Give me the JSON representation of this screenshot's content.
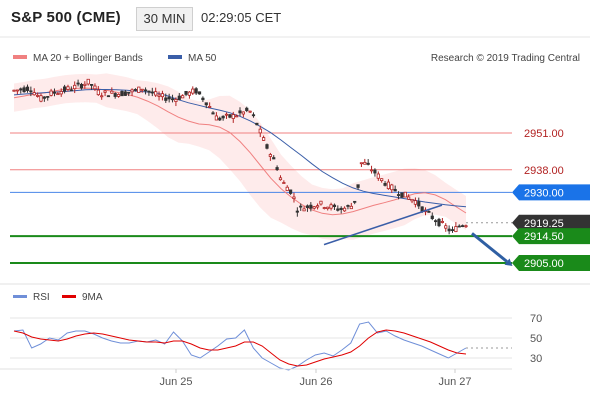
{
  "header": {
    "title": "S&P 500 (CME)",
    "timeframe": "30 MIN",
    "clock": "02:29:05 CET"
  },
  "legend": {
    "ma20_label": "MA 20 + Bollinger Bands",
    "ma50_label": "MA 50",
    "source": "Research © 2019 Trading Central"
  },
  "colors": {
    "ma20": "#f08080",
    "band_fill": "#fde2e2",
    "ma50": "#3a5ea8",
    "resistance": "#f08080",
    "pivot": "#4a86e8",
    "support": "#1a8a1a",
    "candle_up": "#b22222",
    "candle_down": "#333333",
    "current": "#333333",
    "rsi": "#6f8fd8",
    "rsi_ma": "#e00000",
    "arrow": "#2f5fa3"
  },
  "chart_data": [
    {
      "type": "candlestick",
      "yaxis": {
        "min": 2899,
        "max": 2974
      },
      "x_ticks": [
        "Jun 25",
        "Jun 26",
        "Jun 27"
      ],
      "levels": [
        {
          "name": "resistance-2",
          "value": "2951.00"
        },
        {
          "name": "resistance-1",
          "value": "2938.00"
        },
        {
          "name": "pivot",
          "value": "2930.00"
        },
        {
          "name": "current",
          "value": "2919.25"
        },
        {
          "name": "support-1",
          "value": "2914.50"
        },
        {
          "name": "support-2",
          "value": "2905.00"
        }
      ],
      "series": [
        {
          "name": "MA 20",
          "values": [
            2963.5,
            2964.1,
            2964.8,
            2965.2,
            2965.9,
            2966.5,
            2966.8,
            2966.9,
            2966.7,
            2966.1,
            2965.4,
            2964.7,
            2963.7,
            2962.3,
            2960.6,
            2958.5,
            2956.6,
            2955.2,
            2954.2,
            2953.9,
            2953.1,
            2951.2,
            2948.0,
            2944.0,
            2939.5,
            2935.0,
            2931.3,
            2928.3,
            2925.7,
            2923.8,
            2922.6,
            2922.1,
            2922.4,
            2923.2,
            2924.3,
            2925.4,
            2926.3,
            2927.3,
            2928.4,
            2929.5,
            2929.9,
            2929.1,
            2927.4,
            2925.0,
            2922.7
          ]
        },
        {
          "name": "MA 50",
          "values": [
            2964.5,
            2964.8,
            2965.0,
            2965.3,
            2965.5,
            2965.7,
            2966.0,
            2966.3,
            2966.4,
            2966.4,
            2966.3,
            2966.1,
            2965.8,
            2965.5,
            2965.1,
            2964.1,
            2962.8,
            2961.7,
            2960.8,
            2959.9,
            2959.1,
            2958.2,
            2956.9,
            2955.3,
            2953.3,
            2951.1,
            2948.5,
            2945.7,
            2943.0,
            2940.1,
            2937.4,
            2935.2,
            2933.2,
            2931.6,
            2930.4,
            2929.6,
            2929.0,
            2928.4,
            2927.8,
            2927.2,
            2926.6,
            2926.1,
            2925.6,
            2925.2,
            2924.9
          ]
        }
      ]
    },
    {
      "type": "line",
      "title": "RSI",
      "ymin": 20,
      "ymax": 80,
      "y_ticks": [
        "70",
        "50",
        "30"
      ],
      "series": [
        {
          "name": "RSI",
          "values": [
            57,
            58,
            40,
            44,
            50,
            48,
            55,
            57,
            57,
            54,
            50,
            47,
            45,
            45,
            47,
            46,
            48,
            44,
            56,
            47,
            33,
            30,
            36,
            42,
            49,
            50,
            58,
            40,
            30,
            25,
            20,
            18,
            22,
            28,
            33,
            35,
            32,
            38,
            45,
            64,
            66,
            55,
            57,
            52,
            48,
            45,
            42,
            38,
            34,
            30,
            35,
            40
          ]
        },
        {
          "name": "9MA",
          "values": [
            57,
            55,
            51,
            49,
            48,
            47,
            49,
            52,
            54,
            55,
            54,
            52,
            50,
            48,
            47,
            46,
            46,
            45,
            47,
            47,
            44,
            40,
            38,
            38,
            40,
            42,
            46,
            46,
            42,
            35,
            28,
            24,
            22,
            23,
            26,
            29,
            31,
            33,
            36,
            42,
            50,
            56,
            58,
            57,
            55,
            52,
            49,
            46,
            42,
            38,
            35,
            34
          ]
        }
      ]
    }
  ]
}
